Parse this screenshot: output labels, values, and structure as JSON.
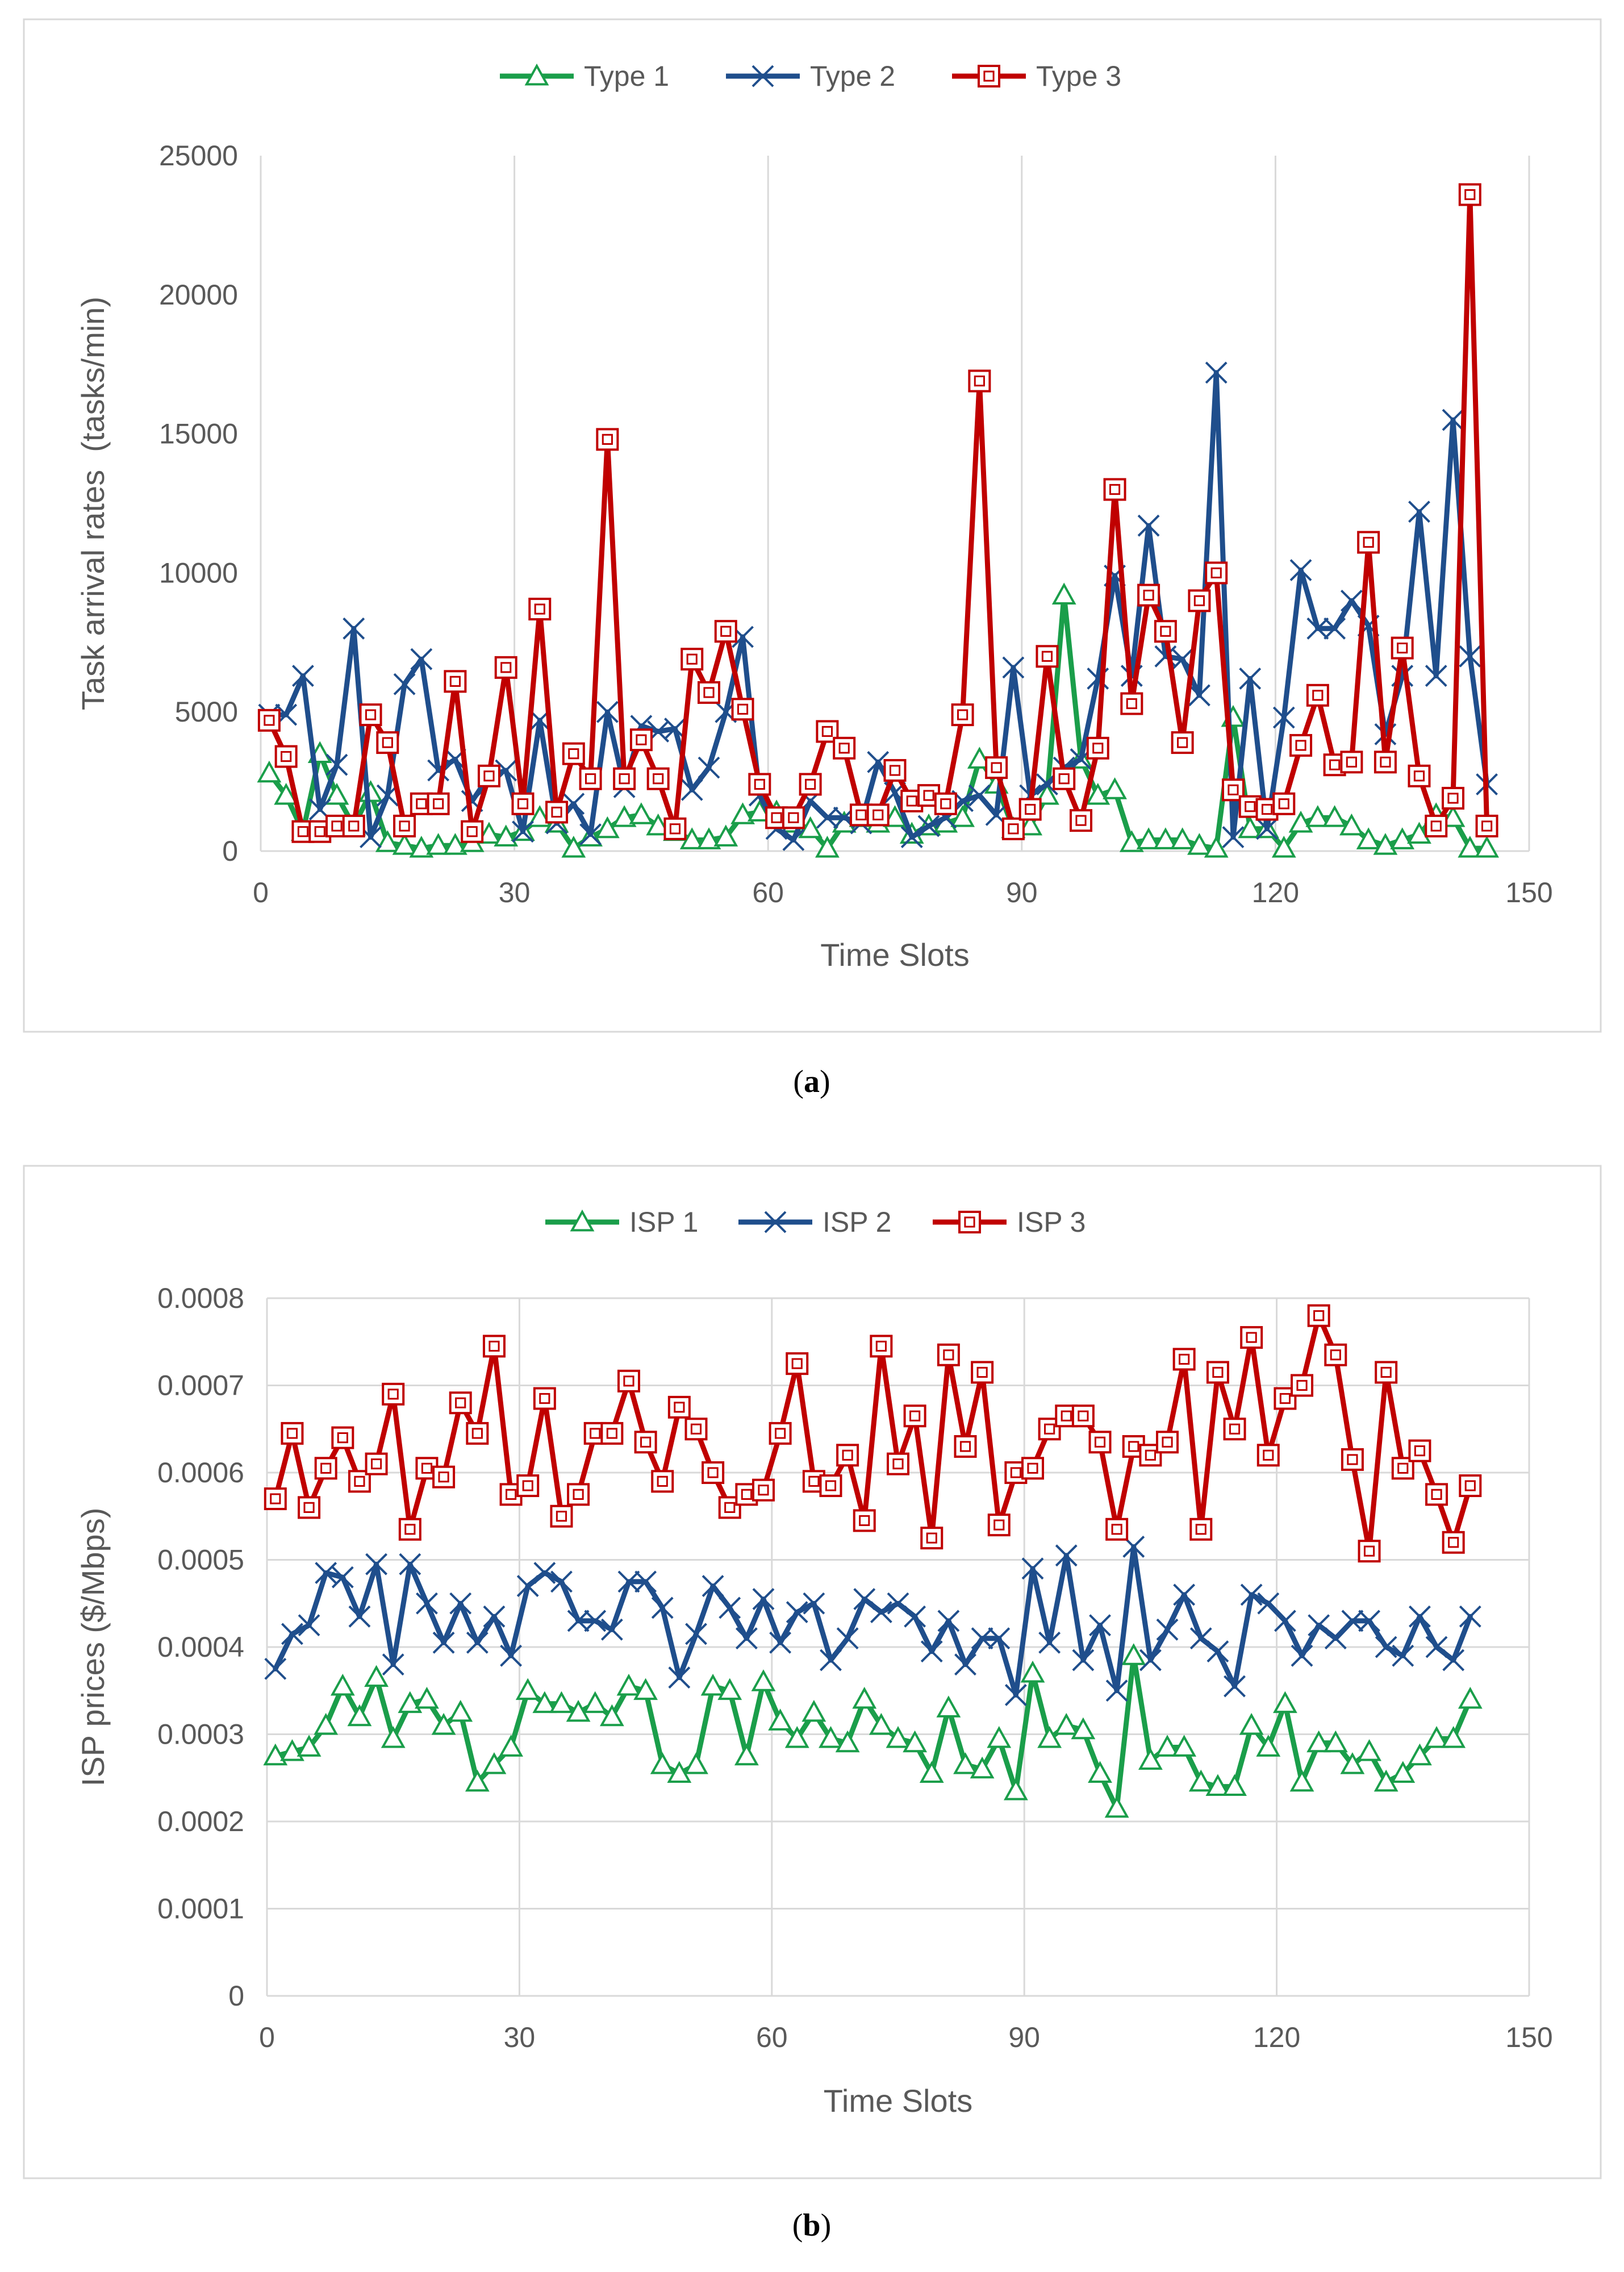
{
  "chart_data": [
    {
      "id": "a",
      "type": "line",
      "panel_label": "a",
      "xlabel": "Time Slots",
      "ylabel": "Task arrival rates  (tasks/min)",
      "xlim": [
        0,
        150
      ],
      "ylim": [
        0,
        25000
      ],
      "xticks": [
        0,
        30,
        60,
        90,
        120,
        150
      ],
      "yticks": [
        0,
        5000,
        10000,
        15000,
        20000,
        25000
      ],
      "grid": "vertical",
      "legend": "top-center",
      "x": [
        1,
        3,
        5,
        7,
        9,
        11,
        13,
        15,
        17,
        19,
        21,
        23,
        25,
        27,
        29,
        31,
        33,
        35,
        37,
        39,
        41,
        43,
        45,
        47,
        49,
        51,
        53,
        55,
        57,
        59,
        61,
        63,
        65,
        67,
        69,
        71,
        73,
        75,
        77,
        79,
        81,
        83,
        85,
        87,
        89,
        91,
        93,
        95,
        97,
        99,
        101,
        103,
        105,
        107,
        109,
        111,
        113,
        115,
        117,
        119,
        121,
        123,
        125,
        127,
        129,
        131,
        133,
        135,
        137,
        139,
        141,
        143,
        145
      ],
      "series": [
        {
          "name": "Type 1",
          "color": "#1a9e4a",
          "marker": "triangle",
          "values": [
            2800,
            2000,
            700,
            3500,
            2000,
            900,
            2100,
            300,
            200,
            100,
            200,
            200,
            300,
            600,
            500,
            700,
            1200,
            1000,
            100,
            500,
            800,
            1200,
            1300,
            900,
            700,
            400,
            400,
            500,
            1300,
            1400,
            1400,
            1000,
            800,
            100,
            1000,
            1200,
            1000,
            1200,
            600,
            900,
            1000,
            1200,
            3300,
            2400,
            800,
            900,
            2000,
            9200,
            3300,
            2000,
            2200,
            300,
            400,
            400,
            400,
            200,
            100,
            4800,
            800,
            800,
            100,
            1000,
            1200,
            1200,
            900,
            400,
            200,
            400,
            600,
            1300,
            1200,
            100,
            100
          ]
        },
        {
          "name": "Type 2",
          "color": "#1f4e8c",
          "marker": "x",
          "values": [
            4900,
            4900,
            6300,
            1500,
            3100,
            8000,
            500,
            2000,
            6000,
            6900,
            2900,
            3300,
            1800,
            2700,
            2900,
            700,
            4700,
            1000,
            1700,
            600,
            5000,
            2300,
            4500,
            4300,
            4400,
            2200,
            3000,
            5000,
            7700,
            2000,
            800,
            400,
            1800,
            1200,
            1200,
            1000,
            3200,
            2100,
            500,
            900,
            1200,
            1800,
            2000,
            1300,
            6600,
            2000,
            2400,
            3000,
            3300,
            6200,
            9900,
            6300,
            11700,
            7000,
            6900,
            5600,
            17200,
            500,
            6200,
            800,
            4800,
            10100,
            8000,
            8000,
            9000,
            8100,
            4200,
            6300,
            12200,
            6300,
            15500,
            7000,
            2400
          ]
        },
        {
          "name": "Type 3",
          "color": "#c00000",
          "marker": "square",
          "values": [
            4700,
            3400,
            700,
            700,
            900,
            900,
            4900,
            3900,
            900,
            1700,
            1700,
            6100,
            700,
            2700,
            6600,
            1700,
            8700,
            1400,
            3500,
            2600,
            14800,
            2600,
            4000,
            2600,
            800,
            6900,
            5700,
            7900,
            5100,
            2400,
            1200,
            1200,
            2400,
            4300,
            3700,
            1300,
            1300,
            2900,
            1800,
            2000,
            1700,
            4900,
            16900,
            3000,
            800,
            1500,
            7000,
            2600,
            1100,
            3700,
            13000,
            5300,
            9200,
            7900,
            3900,
            9000,
            10000,
            2200,
            1600,
            1500,
            1700,
            3800,
            5600,
            3100,
            3200,
            11100,
            3200,
            7300,
            2700,
            900,
            1900,
            23600,
            900
          ]
        }
      ]
    },
    {
      "id": "b",
      "type": "line",
      "panel_label": "b",
      "xlabel": "Time Slots",
      "ylabel": "ISP prices ($/Mbps)",
      "xlim": [
        0,
        150
      ],
      "ylim": [
        0,
        0.0008
      ],
      "xticks": [
        0,
        30,
        60,
        90,
        120,
        150
      ],
      "yticks": [
        0,
        0.0001,
        0.0002,
        0.0003,
        0.0004,
        0.0005,
        0.0006,
        0.0007,
        0.0008
      ],
      "ytick_labels": [
        "0",
        "0.0001",
        "0.0002",
        "0.0003",
        "0.0004",
        "0.0005",
        "0.0006",
        "0.0007",
        "0.0008"
      ],
      "grid": "both",
      "legend": "top-center",
      "x": [
        1,
        3,
        5,
        7,
        9,
        11,
        13,
        15,
        17,
        19,
        21,
        23,
        25,
        27,
        29,
        31,
        33,
        35,
        37,
        39,
        41,
        43,
        45,
        47,
        49,
        51,
        53,
        55,
        57,
        59,
        61,
        63,
        65,
        67,
        69,
        71,
        73,
        75,
        77,
        79,
        81,
        83,
        85,
        87,
        89,
        91,
        93,
        95,
        97,
        99,
        101,
        103,
        105,
        107,
        109,
        111,
        113,
        115,
        117,
        119,
        121,
        123,
        125,
        127,
        129,
        131,
        133,
        135,
        137,
        139,
        141,
        143
      ],
      "series": [
        {
          "name": "ISP 1",
          "color": "#1a9e4a",
          "marker": "triangle",
          "values": [
            0.000275,
            0.00028,
            0.000285,
            0.00031,
            0.000355,
            0.00032,
            0.000365,
            0.000295,
            0.000335,
            0.00034,
            0.00031,
            0.000325,
            0.000245,
            0.000265,
            0.000285,
            0.00035,
            0.000335,
            0.000335,
            0.000325,
            0.000335,
            0.00032,
            0.000355,
            0.00035,
            0.000265,
            0.000255,
            0.000265,
            0.000355,
            0.00035,
            0.000275,
            0.00036,
            0.000315,
            0.000295,
            0.000325,
            0.000295,
            0.00029,
            0.00034,
            0.00031,
            0.000295,
            0.00029,
            0.000255,
            0.00033,
            0.000265,
            0.00026,
            0.000295,
            0.000235,
            0.00037,
            0.000295,
            0.00031,
            0.000305,
            0.000255,
            0.000215,
            0.00039,
            0.00027,
            0.000285,
            0.000285,
            0.000245,
            0.00024,
            0.00024,
            0.00031,
            0.000285,
            0.000335,
            0.000245,
            0.00029,
            0.00029,
            0.000265,
            0.00028,
            0.000245,
            0.000255,
            0.000275,
            0.000295,
            0.000295,
            0.00034
          ]
        },
        {
          "name": "ISP 2",
          "color": "#1f4e8c",
          "marker": "x",
          "values": [
            0.000375,
            0.000415,
            0.000425,
            0.000485,
            0.00048,
            0.000435,
            0.000495,
            0.00038,
            0.000495,
            0.00045,
            0.000405,
            0.00045,
            0.000405,
            0.000435,
            0.00039,
            0.00047,
            0.000485,
            0.000475,
            0.00043,
            0.00043,
            0.00042,
            0.000475,
            0.000475,
            0.000445,
            0.000365,
            0.000415,
            0.00047,
            0.000445,
            0.00041,
            0.000455,
            0.000405,
            0.00044,
            0.00045,
            0.000385,
            0.00041,
            0.000455,
            0.00044,
            0.00045,
            0.000435,
            0.000395,
            0.00043,
            0.00038,
            0.00041,
            0.00041,
            0.000345,
            0.00049,
            0.000405,
            0.000505,
            0.000385,
            0.000425,
            0.00035,
            0.000515,
            0.000385,
            0.00042,
            0.00046,
            0.00041,
            0.000395,
            0.000355,
            0.00046,
            0.00045,
            0.00043,
            0.00039,
            0.000425,
            0.00041,
            0.00043,
            0.00043,
            0.0004,
            0.00039,
            0.000435,
            0.0004,
            0.000385,
            0.000435
          ]
        },
        {
          "name": "ISP 3",
          "color": "#c00000",
          "marker": "square",
          "values": [
            0.00057,
            0.000645,
            0.00056,
            0.000605,
            0.00064,
            0.00059,
            0.00061,
            0.00069,
            0.000535,
            0.000605,
            0.000595,
            0.00068,
            0.000645,
            0.000745,
            0.000575,
            0.000585,
            0.000685,
            0.00055,
            0.000575,
            0.000645,
            0.000645,
            0.000705,
            0.000635,
            0.00059,
            0.000675,
            0.00065,
            0.0006,
            0.00056,
            0.000575,
            0.00058,
            0.000645,
            0.000725,
            0.00059,
            0.000585,
            0.00062,
            0.000545,
            0.000745,
            0.00061,
            0.000665,
            0.000525,
            0.000735,
            0.00063,
            0.000715,
            0.00054,
            0.0006,
            0.000605,
            0.00065,
            0.000665,
            0.000665,
            0.000635,
            0.000535,
            0.00063,
            0.00062,
            0.000635,
            0.00073,
            0.000535,
            0.000715,
            0.00065,
            0.000755,
            0.00062,
            0.000685,
            0.0007,
            0.00078,
            0.000735,
            0.000615,
            0.00051,
            0.000715,
            0.000605,
            0.000625,
            0.000575,
            0.00052,
            0.000585
          ]
        }
      ]
    }
  ]
}
